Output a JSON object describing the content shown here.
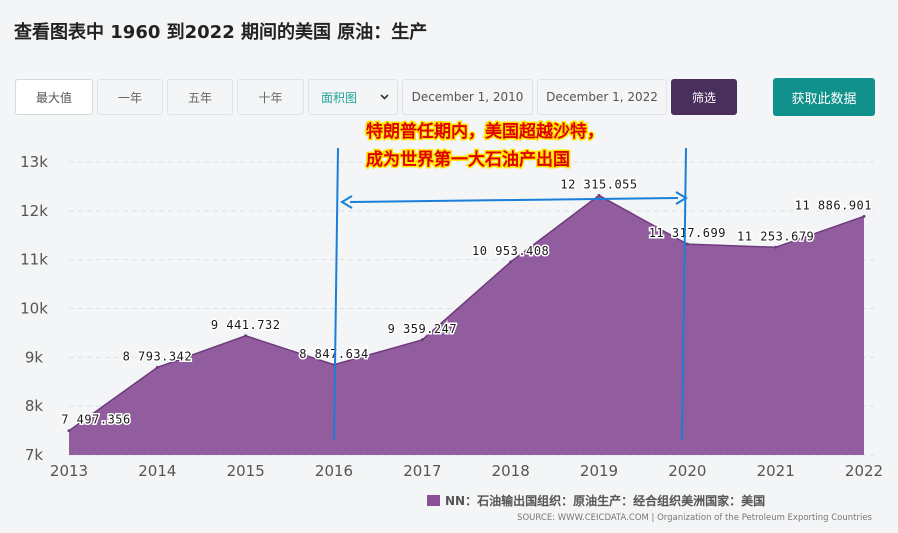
{
  "page": {
    "title": "查看图表中 1960 到2022 期间的美国 原油：生产"
  },
  "controls": {
    "max_label": "最大值",
    "one_year_label": "一年",
    "five_year_label": "五年",
    "ten_year_label": "十年",
    "chart_type_value": "面积图",
    "start_date": "December 1, 2010",
    "end_date": "December 1, 2022",
    "filter_label": "筛选",
    "fetch_label": "获取此数据"
  },
  "annotation": {
    "line1": "特朗普任期内，美国超越沙特，",
    "line2": "成为世界第一大石油产出国",
    "accent_color": "#1a7fd9",
    "text_color": "#e00000",
    "text_highlight": "#ffe500"
  },
  "chart_data": {
    "type": "area",
    "x": [
      2013,
      2014,
      2015,
      2016,
      2017,
      2018,
      2019,
      2020,
      2021,
      2022
    ],
    "series": [
      {
        "name": "NN：石油输出国组织：原油生产：经合组织美洲国家：美国",
        "values": [
          7497.356,
          8793.342,
          9441.732,
          8847.634,
          9359.247,
          10953.408,
          12315.055,
          11317.699,
          11253.679,
          11886.901
        ],
        "labels": [
          "7 497.356",
          "8 793.342",
          "9 441.732",
          "8 847.634",
          "9 359.247",
          "10 953.408",
          "12 315.055",
          "11 317.699",
          "11 253.679",
          "11 886.901"
        ],
        "color": "#8a4f96"
      }
    ],
    "yticks": [
      "7k",
      "8k",
      "9k",
      "10k",
      "11k",
      "12k",
      "13k"
    ],
    "xticks": [
      "2013",
      "2014",
      "2015",
      "2016",
      "2017",
      "2018",
      "2019",
      "2020",
      "2021",
      "2022"
    ],
    "ylim": [
      7000,
      13000
    ],
    "xlim": [
      2013,
      2022
    ],
    "grid": true,
    "legend_position": "bottom-right",
    "source": "SOURCE: WWW.CEICDATA.COM | Organization of the Petroleum Exporting Countries"
  }
}
